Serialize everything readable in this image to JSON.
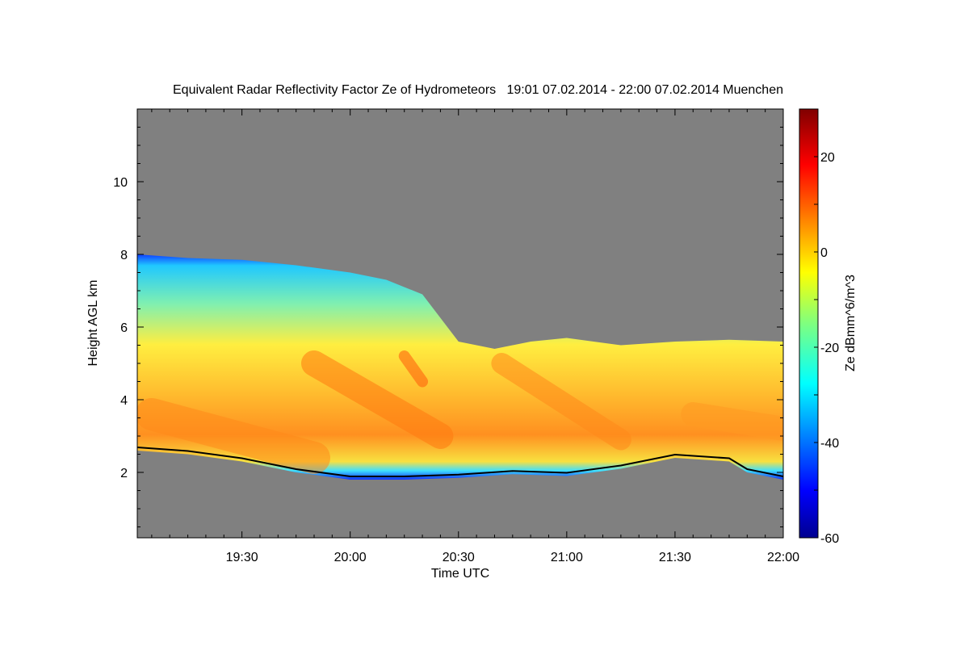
{
  "chart_data": {
    "type": "heatmap",
    "title": "Equivalent Radar Reflectivity Factor Ze of Hydrometeors   19:01 07.02.2014 - 22:00 07.02.2014 Muenchen",
    "xlabel": "Time UTC",
    "ylabel": "Height AGL km",
    "x_start": "19:01",
    "x_end": "22:00",
    "x_ticks": [
      "19:30",
      "20:00",
      "20:30",
      "21:00",
      "21:30",
      "22:00"
    ],
    "xlim": [
      "19:01",
      "22:00"
    ],
    "ylim": [
      0.2,
      12.0
    ],
    "y_ticks": [
      2,
      4,
      6,
      8,
      10
    ],
    "colorbar": {
      "label": "Ze dBmm^6/m^3",
      "range": [
        -60,
        30
      ],
      "ticks": [
        -60,
        -40,
        -20,
        0,
        20
      ],
      "colormap": "jet"
    },
    "background_color": "#808080",
    "echo_top_km": [
      {
        "t": "19:01",
        "h": 8.0
      },
      {
        "t": "19:15",
        "h": 7.9
      },
      {
        "t": "19:30",
        "h": 7.85
      },
      {
        "t": "19:45",
        "h": 7.7
      },
      {
        "t": "20:00",
        "h": 7.5
      },
      {
        "t": "20:10",
        "h": 7.3
      },
      {
        "t": "20:20",
        "h": 6.9
      },
      {
        "t": "20:30",
        "h": 5.6
      },
      {
        "t": "20:40",
        "h": 5.4
      },
      {
        "t": "20:50",
        "h": 5.6
      },
      {
        "t": "21:00",
        "h": 5.7
      },
      {
        "t": "21:15",
        "h": 5.5
      },
      {
        "t": "21:30",
        "h": 5.6
      },
      {
        "t": "21:45",
        "h": 5.65
      },
      {
        "t": "22:00",
        "h": 5.6
      }
    ],
    "cloud_base_km": [
      {
        "t": "19:01",
        "h": 2.6
      },
      {
        "t": "19:15",
        "h": 2.5
      },
      {
        "t": "19:30",
        "h": 2.3
      },
      {
        "t": "19:45",
        "h": 2.0
      },
      {
        "t": "20:00",
        "h": 1.8
      },
      {
        "t": "20:15",
        "h": 1.8
      },
      {
        "t": "20:30",
        "h": 1.85
      },
      {
        "t": "20:45",
        "h": 1.95
      },
      {
        "t": "21:00",
        "h": 1.9
      },
      {
        "t": "21:15",
        "h": 2.1
      },
      {
        "t": "21:30",
        "h": 2.4
      },
      {
        "t": "21:45",
        "h": 2.3
      },
      {
        "t": "21:50",
        "h": 2.0
      },
      {
        "t": "22:00",
        "h": 1.8
      }
    ]
  }
}
